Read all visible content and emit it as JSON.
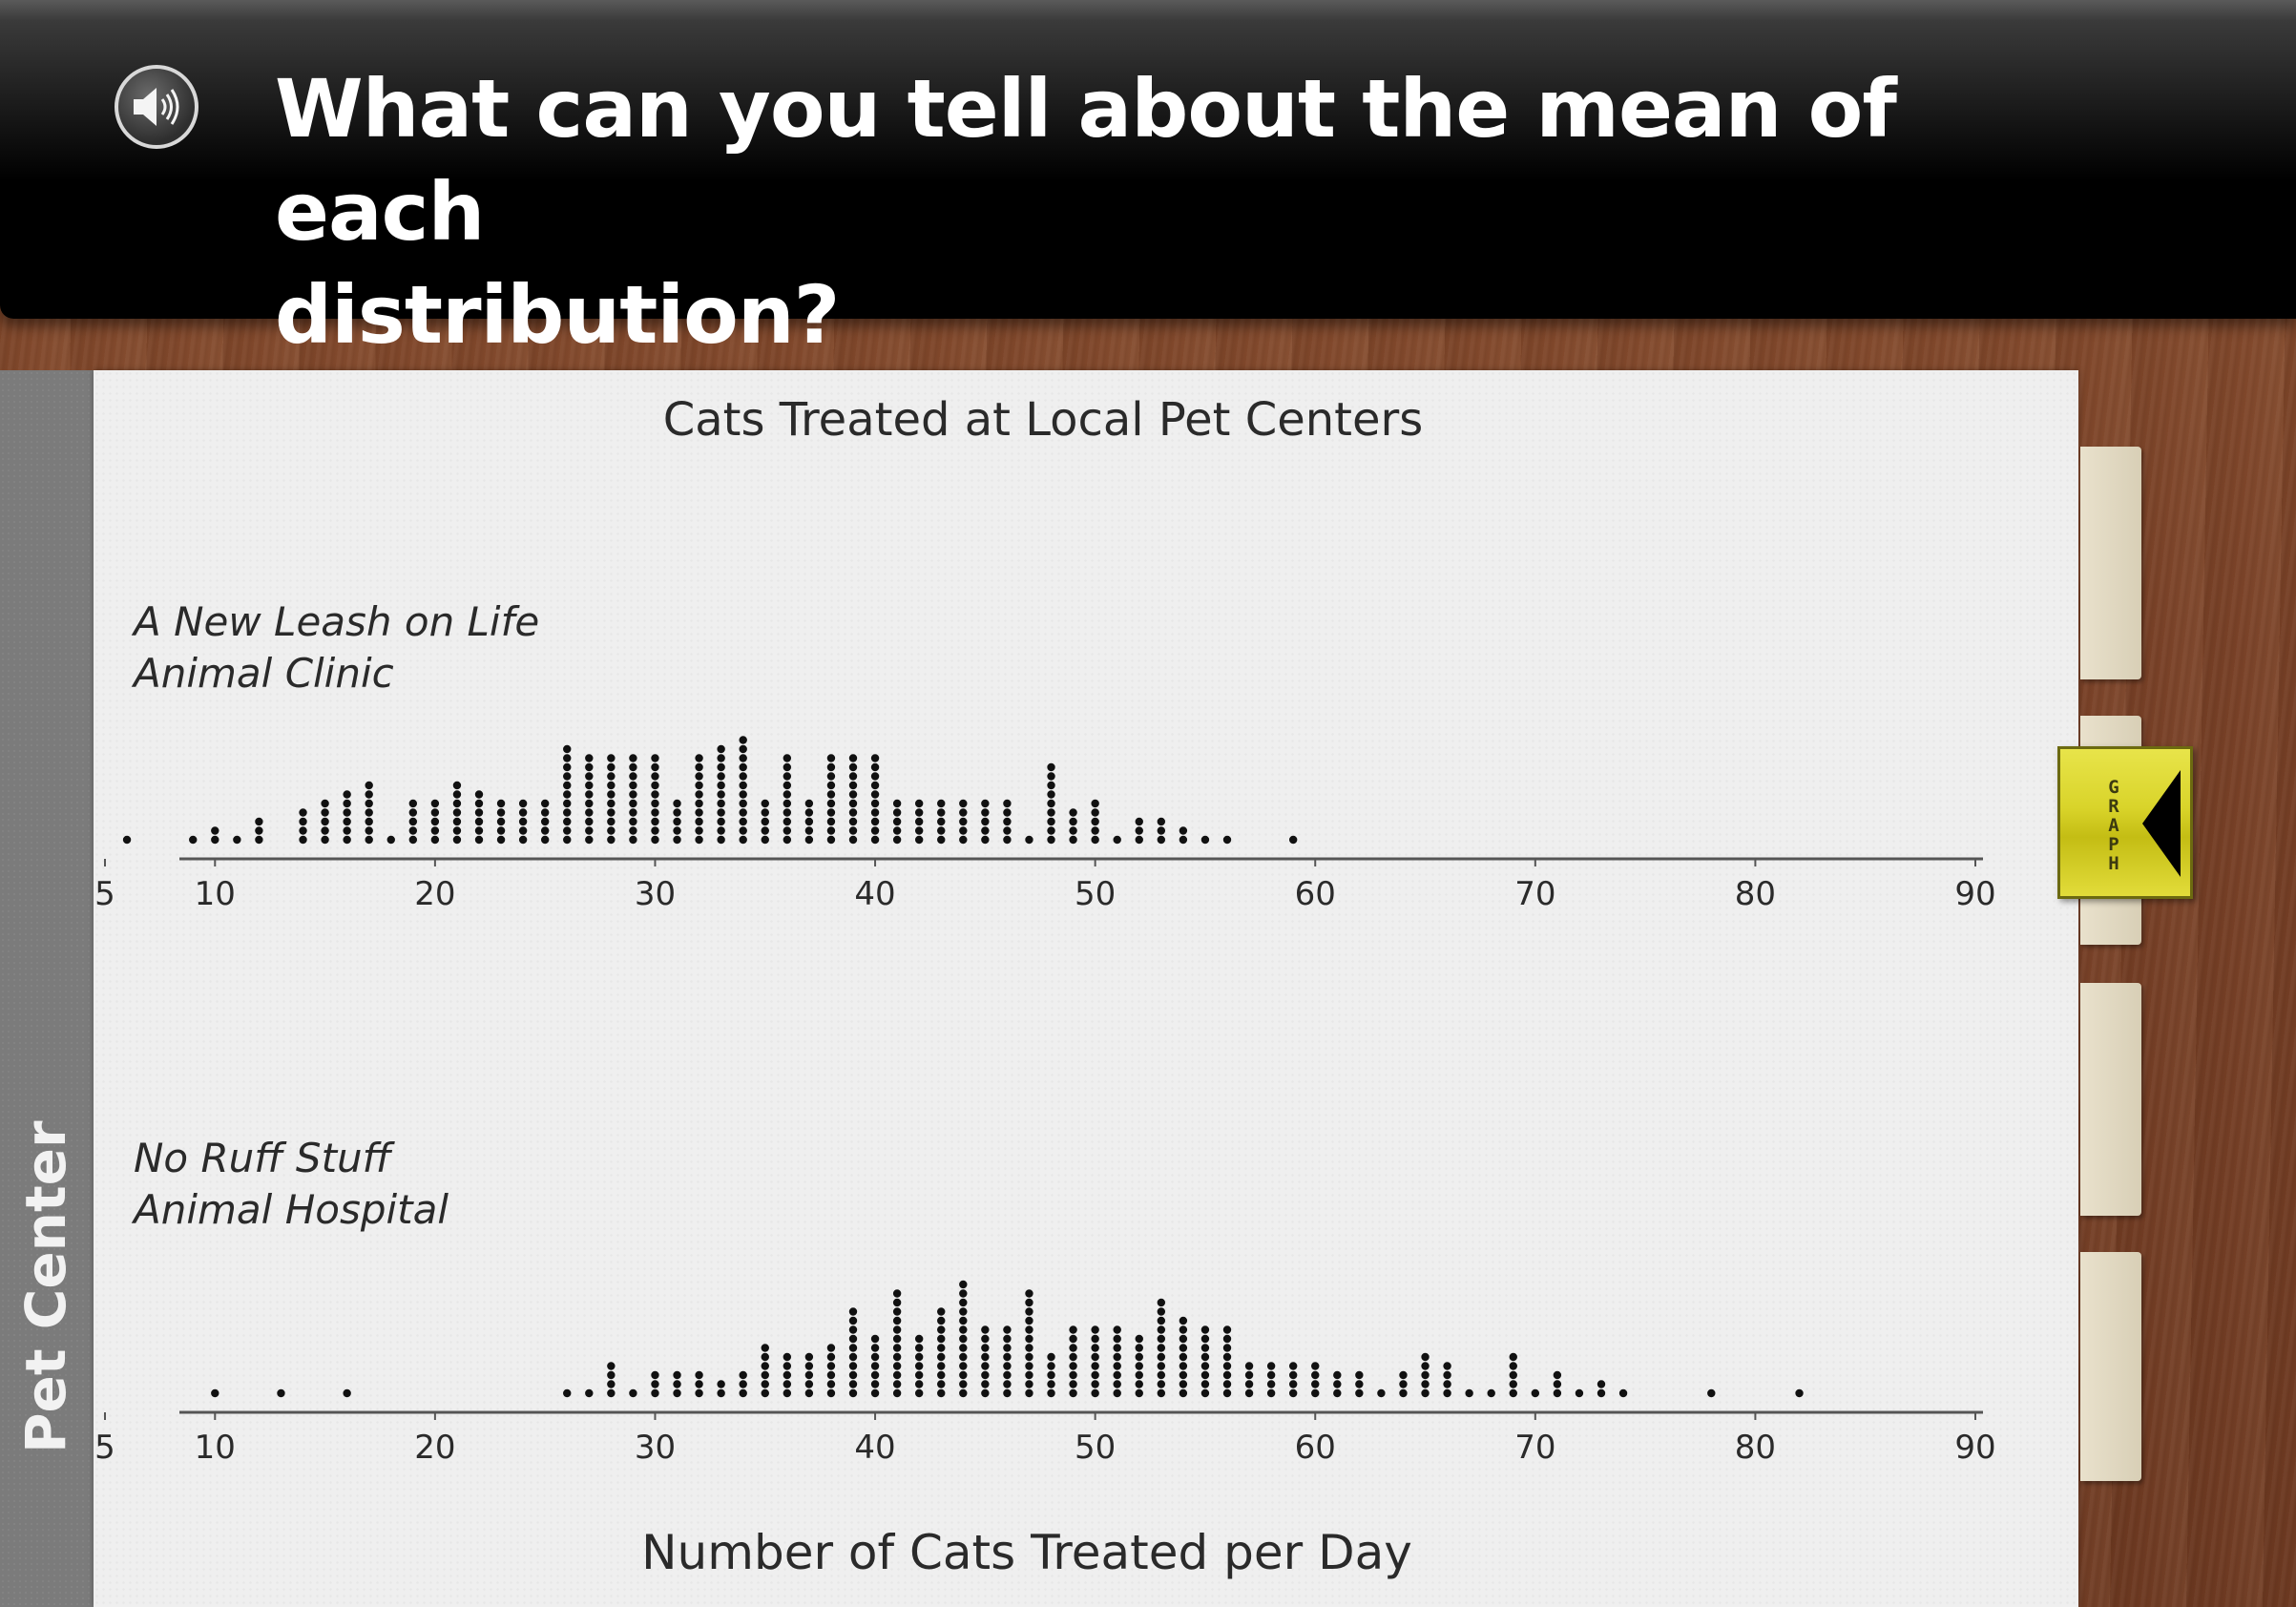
{
  "question": {
    "line1": "What can you tell about the mean of each",
    "line2": "distribution?",
    "audio_icon": "speaker-icon"
  },
  "side_panel": {
    "label": "Pet Center"
  },
  "graph_tab": {
    "label": "GRAPH",
    "icon": "triangle-left-icon"
  },
  "colors": {
    "accent": "#dcd62e",
    "dot": "#111111",
    "header": "#000000"
  },
  "chart_data": {
    "type": "dot-plot",
    "title": "Cats Treated at Local Pet Centers",
    "xlabel": "Number of Cats Treated per Day",
    "xlim": [
      5,
      90
    ],
    "ticks": [
      5,
      10,
      20,
      30,
      40,
      50,
      60,
      70,
      80,
      90
    ],
    "series": [
      {
        "name": "A New Leash on Life Animal Clinic",
        "name_line1": "A New Leash on Life",
        "name_line2": "Animal Clinic",
        "points": [
          [
            6,
            1
          ],
          [
            9,
            1
          ],
          [
            10,
            2
          ],
          [
            11,
            1
          ],
          [
            12,
            3
          ],
          [
            14,
            4
          ],
          [
            15,
            5
          ],
          [
            16,
            6
          ],
          [
            17,
            7
          ],
          [
            18,
            1
          ],
          [
            19,
            5
          ],
          [
            20,
            5
          ],
          [
            21,
            7
          ],
          [
            22,
            6
          ],
          [
            23,
            5
          ],
          [
            24,
            5
          ],
          [
            25,
            5
          ],
          [
            26,
            11
          ],
          [
            27,
            10
          ],
          [
            28,
            10
          ],
          [
            29,
            10
          ],
          [
            30,
            10
          ],
          [
            31,
            5
          ],
          [
            32,
            10
          ],
          [
            33,
            11
          ],
          [
            34,
            12
          ],
          [
            35,
            5
          ],
          [
            36,
            10
          ],
          [
            37,
            5
          ],
          [
            38,
            10
          ],
          [
            39,
            10
          ],
          [
            40,
            10
          ],
          [
            41,
            5
          ],
          [
            42,
            5
          ],
          [
            43,
            5
          ],
          [
            44,
            5
          ],
          [
            45,
            5
          ],
          [
            46,
            5
          ],
          [
            47,
            1
          ],
          [
            48,
            9
          ],
          [
            49,
            4
          ],
          [
            50,
            5
          ],
          [
            51,
            1
          ],
          [
            52,
            3
          ],
          [
            53,
            3
          ],
          [
            54,
            2
          ],
          [
            55,
            1
          ],
          [
            56,
            1
          ],
          [
            59,
            1
          ]
        ]
      },
      {
        "name": "No Ruff Stuff Animal Hospital",
        "name_line1": "No Ruff Stuff",
        "name_line2": "Animal Hospital",
        "points": [
          [
            10,
            1
          ],
          [
            13,
            1
          ],
          [
            16,
            1
          ],
          [
            26,
            1
          ],
          [
            27,
            1
          ],
          [
            28,
            4
          ],
          [
            29,
            1
          ],
          [
            30,
            3
          ],
          [
            31,
            3
          ],
          [
            32,
            3
          ],
          [
            33,
            2
          ],
          [
            34,
            3
          ],
          [
            35,
            6
          ],
          [
            36,
            5
          ],
          [
            37,
            5
          ],
          [
            38,
            6
          ],
          [
            39,
            10
          ],
          [
            40,
            7
          ],
          [
            41,
            12
          ],
          [
            42,
            7
          ],
          [
            43,
            10
          ],
          [
            44,
            13
          ],
          [
            45,
            8
          ],
          [
            46,
            8
          ],
          [
            47,
            12
          ],
          [
            48,
            5
          ],
          [
            49,
            8
          ],
          [
            50,
            8
          ],
          [
            51,
            8
          ],
          [
            52,
            7
          ],
          [
            53,
            11
          ],
          [
            54,
            9
          ],
          [
            55,
            8
          ],
          [
            56,
            8
          ],
          [
            57,
            4
          ],
          [
            58,
            4
          ],
          [
            59,
            4
          ],
          [
            60,
            4
          ],
          [
            61,
            3
          ],
          [
            62,
            3
          ],
          [
            63,
            1
          ],
          [
            64,
            3
          ],
          [
            65,
            5
          ],
          [
            66,
            4
          ],
          [
            67,
            1
          ],
          [
            68,
            1
          ],
          [
            69,
            5
          ],
          [
            70,
            1
          ],
          [
            71,
            3
          ],
          [
            72,
            1
          ],
          [
            73,
            2
          ],
          [
            74,
            1
          ],
          [
            78,
            1
          ],
          [
            82,
            1
          ]
        ]
      }
    ]
  }
}
